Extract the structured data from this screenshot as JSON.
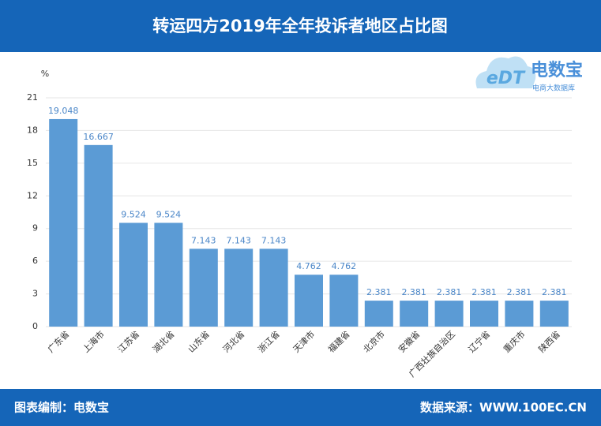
{
  "chart_data": {
    "type": "bar",
    "title": "转运四方2019年全年投诉者地区占比图",
    "y_label": "%",
    "categories": [
      "广东省",
      "上海市",
      "江苏省",
      "湖北省",
      "山东省",
      "河北省",
      "浙江省",
      "天津市",
      "福建省",
      "北京市",
      "安徽省",
      "广西壮族自治区",
      "辽宁省",
      "重庆市",
      "陕西省"
    ],
    "values": [
      19.048,
      16.667,
      9.524,
      9.524,
      7.143,
      7.143,
      7.143,
      4.762,
      4.762,
      2.381,
      2.381,
      2.381,
      2.381,
      2.381,
      2.381
    ],
    "color": "#5b9bd5",
    "ylim": [
      0,
      21
    ],
    "yticks": [
      0,
      3,
      6,
      9,
      12,
      15,
      18,
      21
    ],
    "grid": true,
    "credit": "图表编制：电数宝",
    "source": "数据来源：WWW.100EC.CN",
    "logo": {
      "badge": "eDT",
      "name": "电数宝",
      "tagline": "电商大数据库"
    }
  }
}
